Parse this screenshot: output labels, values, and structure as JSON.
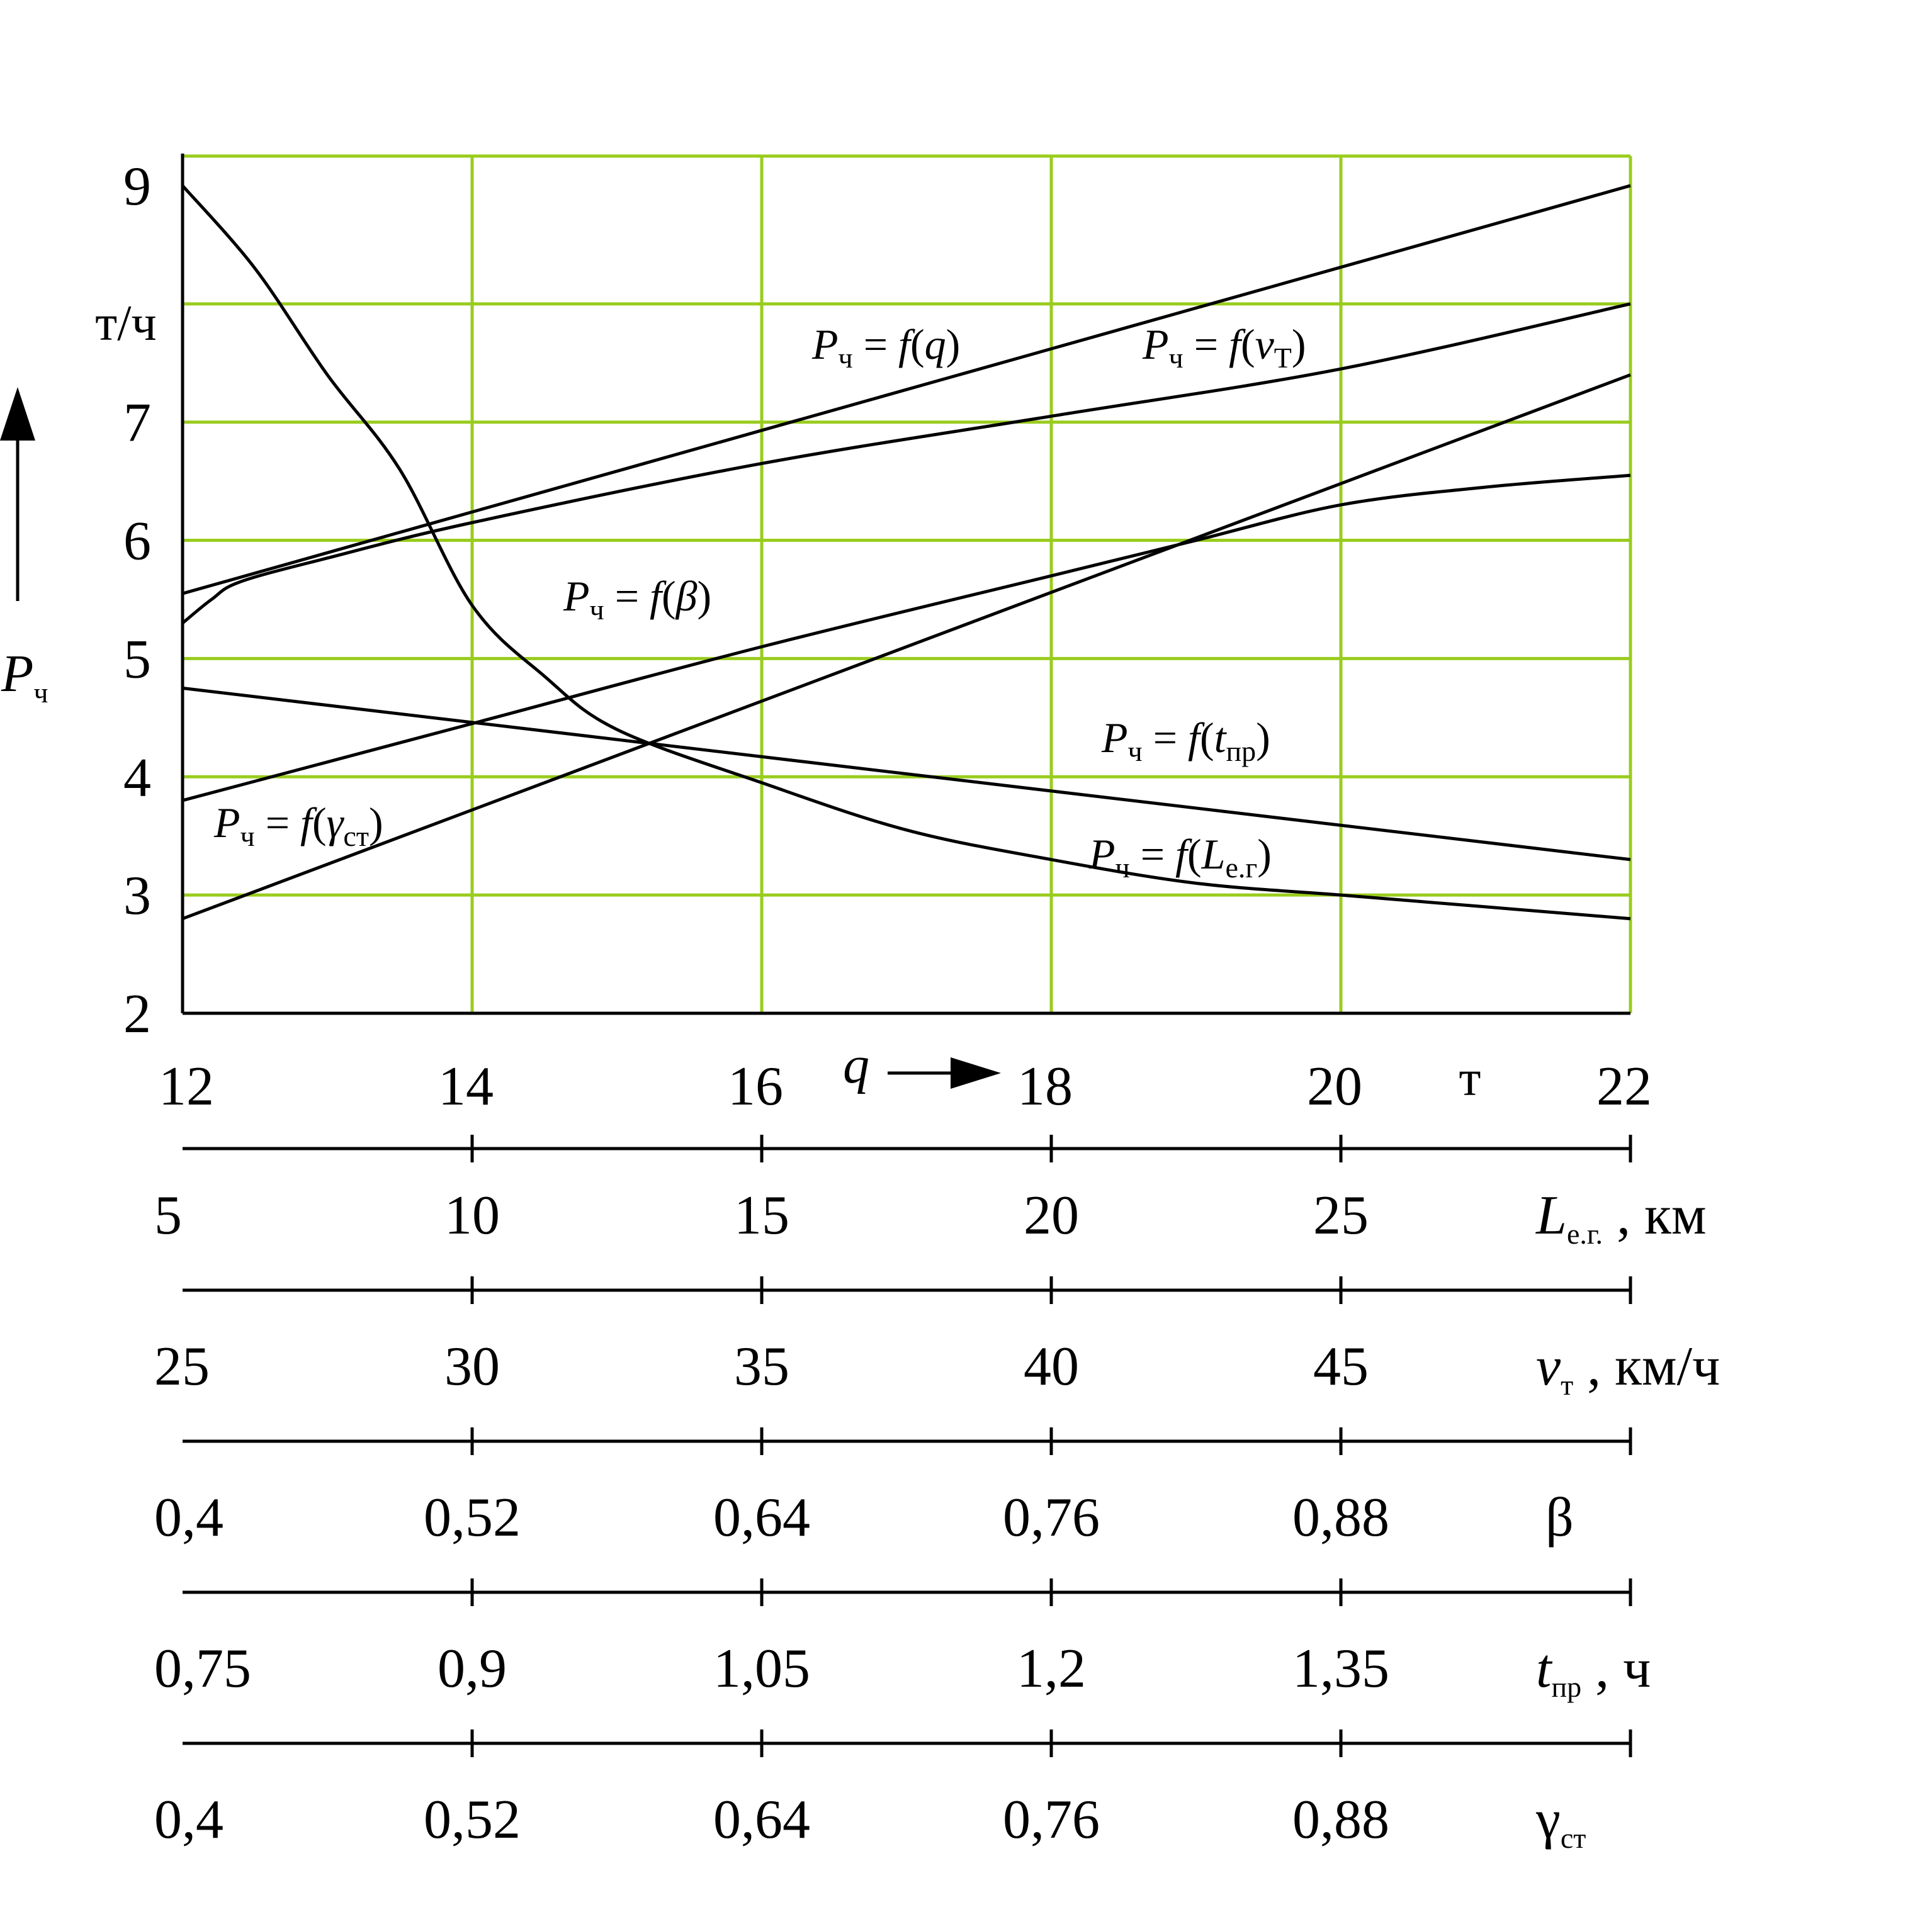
{
  "chart_data": {
    "type": "line",
    "title": "",
    "grid": true,
    "colors": {
      "grid": "#99cc1e",
      "axis": "#000000",
      "curve": "#000000"
    },
    "y_axis": {
      "name": "P",
      "name_sub": "ч",
      "unit": "т/ч",
      "range": [
        2,
        9.25
      ],
      "ticks": [
        "2",
        "3",
        "4",
        "5",
        "6",
        "7",
        "9"
      ],
      "tick_values": [
        2,
        3,
        4,
        5,
        6,
        7,
        9
      ],
      "grid_values": [
        3,
        4,
        5,
        6,
        7,
        8,
        9.25
      ]
    },
    "x_axis": {
      "name": "q",
      "unit": "т",
      "range": [
        12,
        22
      ],
      "ticks": [
        "12",
        "14",
        "16",
        "18",
        "20",
        "22"
      ],
      "tick_values": [
        12,
        14,
        16,
        18,
        20,
        22
      ]
    },
    "secondary_axes": [
      {
        "key": "L",
        "ticks": [
          "5",
          "10",
          "15",
          "20",
          "25"
        ],
        "label": "L",
        "label_sub": "е.г.",
        "label_tail": " , км"
      },
      {
        "key": "v",
        "ticks": [
          "25",
          "30",
          "35",
          "40",
          "45"
        ],
        "label": "v",
        "label_sub": "т",
        "label_tail": " ,  км/ч"
      },
      {
        "key": "beta",
        "ticks": [
          "0,4",
          "0,52",
          "0,64",
          "0,76",
          "0,88"
        ],
        "label": "β",
        "label_sub": "",
        "label_tail": ""
      },
      {
        "key": "tpr",
        "ticks": [
          "0,75",
          "0,9",
          "1,05",
          "1,2",
          "1,35"
        ],
        "label": "t",
        "label_sub": "пр",
        "label_tail": " , ч"
      },
      {
        "key": "gamma",
        "ticks": [
          "0,4",
          "0,52",
          "0,64",
          "0,76",
          "0,88"
        ],
        "label": "γ",
        "label_sub": "ст",
        "label_tail": ""
      }
    ],
    "series": [
      {
        "id": "q",
        "label_head": "P",
        "label_head_sub": "ч",
        "label_mid": " = f(",
        "label_var": "q",
        "label_var_sub": "",
        "label_tail": ")",
        "x": [
          12,
          22
        ],
        "y": [
          5.55,
          9.0
        ]
      },
      {
        "id": "v",
        "label_head": "P",
        "label_head_sub": "ч",
        "label_mid": " = f(",
        "label_var": "v",
        "label_var_sub": "Т",
        "label_tail": ")",
        "x": [
          12,
          12.2,
          12.4,
          13,
          14,
          16,
          18,
          20,
          22
        ],
        "y": [
          5.3,
          5.5,
          5.65,
          5.85,
          6.15,
          6.65,
          7.05,
          7.45,
          8.0
        ]
      },
      {
        "id": "beta",
        "label_head": "P",
        "label_head_sub": "ч",
        "label_mid": " = f(",
        "label_var": "β",
        "label_var_sub": "",
        "label_tail": ")",
        "x": [
          12,
          14,
          16,
          18,
          19,
          20,
          21,
          22
        ],
        "y": [
          3.8,
          4.45,
          5.1,
          5.7,
          6.0,
          6.3,
          6.45,
          6.55
        ]
      },
      {
        "id": "tpr",
        "label_head": "P",
        "label_head_sub": "ч",
        "label_mid": " = f(",
        "label_var": "t",
        "label_var_sub": "пр",
        "label_tail": ")",
        "x": [
          12,
          22
        ],
        "y": [
          4.75,
          3.3
        ]
      },
      {
        "id": "gamma",
        "label_head": "P",
        "label_head_sub": "ч",
        "label_mid": " = f(",
        "label_var": "γ",
        "label_var_sub": "ст",
        "label_tail": ")",
        "x": [
          12,
          22
        ],
        "y": [
          2.8,
          7.4
        ]
      },
      {
        "id": "L",
        "label_head": "P",
        "label_head_sub": "ч",
        "label_mid": " = f(",
        "label_var": "L",
        "label_var_sub": "е.г",
        "label_tail": ")",
        "x": [
          12,
          12.5,
          13,
          13.5,
          14,
          14.5,
          15,
          16,
          17,
          18,
          19,
          20,
          21,
          22
        ],
        "y": [
          9.0,
          8.3,
          7.4,
          6.6,
          5.45,
          4.85,
          4.4,
          3.95,
          3.55,
          3.3,
          3.1,
          3.0,
          2.9,
          2.8
        ]
      }
    ]
  }
}
